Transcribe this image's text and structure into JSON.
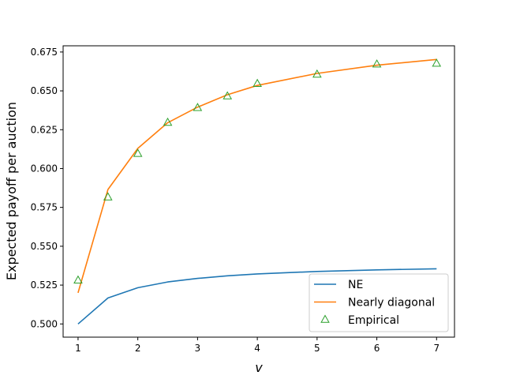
{
  "chart_data": {
    "type": "line",
    "title": "",
    "xlabel": "v",
    "ylabel": "Expected payoff per auction",
    "xlim": [
      0.75,
      7.3
    ],
    "ylim": [
      0.4915,
      0.679
    ],
    "x_ticks": [
      1,
      2,
      3,
      4,
      5,
      6,
      7
    ],
    "y_ticks": [
      0.5,
      0.525,
      0.55,
      0.575,
      0.6,
      0.625,
      0.65,
      0.675
    ],
    "y_tick_labels": [
      "0.500",
      "0.525",
      "0.550",
      "0.575",
      "0.600",
      "0.625",
      "0.650",
      "0.675"
    ],
    "grid": false,
    "legend_position": "lower-right",
    "series": [
      {
        "name": "NE",
        "style": "line",
        "color": "#1f77b4",
        "x": [
          1,
          1.5,
          2,
          2.5,
          3,
          3.5,
          4,
          5,
          6,
          7
        ],
        "y": [
          0.5,
          0.5167,
          0.5233,
          0.527,
          0.5293,
          0.531,
          0.5322,
          0.5338,
          0.5348,
          0.5355
        ]
      },
      {
        "name": "Nearly diagonal",
        "style": "line",
        "color": "#ff7f0e",
        "x": [
          1,
          1.5,
          2,
          2.5,
          3,
          3.5,
          4,
          5,
          6,
          7
        ],
        "y": [
          0.52,
          0.5865,
          0.613,
          0.6295,
          0.6395,
          0.6475,
          0.6535,
          0.6612,
          0.6665,
          0.6702
        ]
      },
      {
        "name": "Empirical",
        "style": "marker",
        "marker": "triangle",
        "color": "#2ca02c",
        "x": [
          1,
          1.5,
          2,
          2.5,
          3,
          3.5,
          4,
          5,
          6,
          7
        ],
        "y": [
          0.528,
          0.5815,
          0.6095,
          0.6295,
          0.639,
          0.6465,
          0.6545,
          0.6605,
          0.667,
          0.6675
        ]
      }
    ]
  }
}
